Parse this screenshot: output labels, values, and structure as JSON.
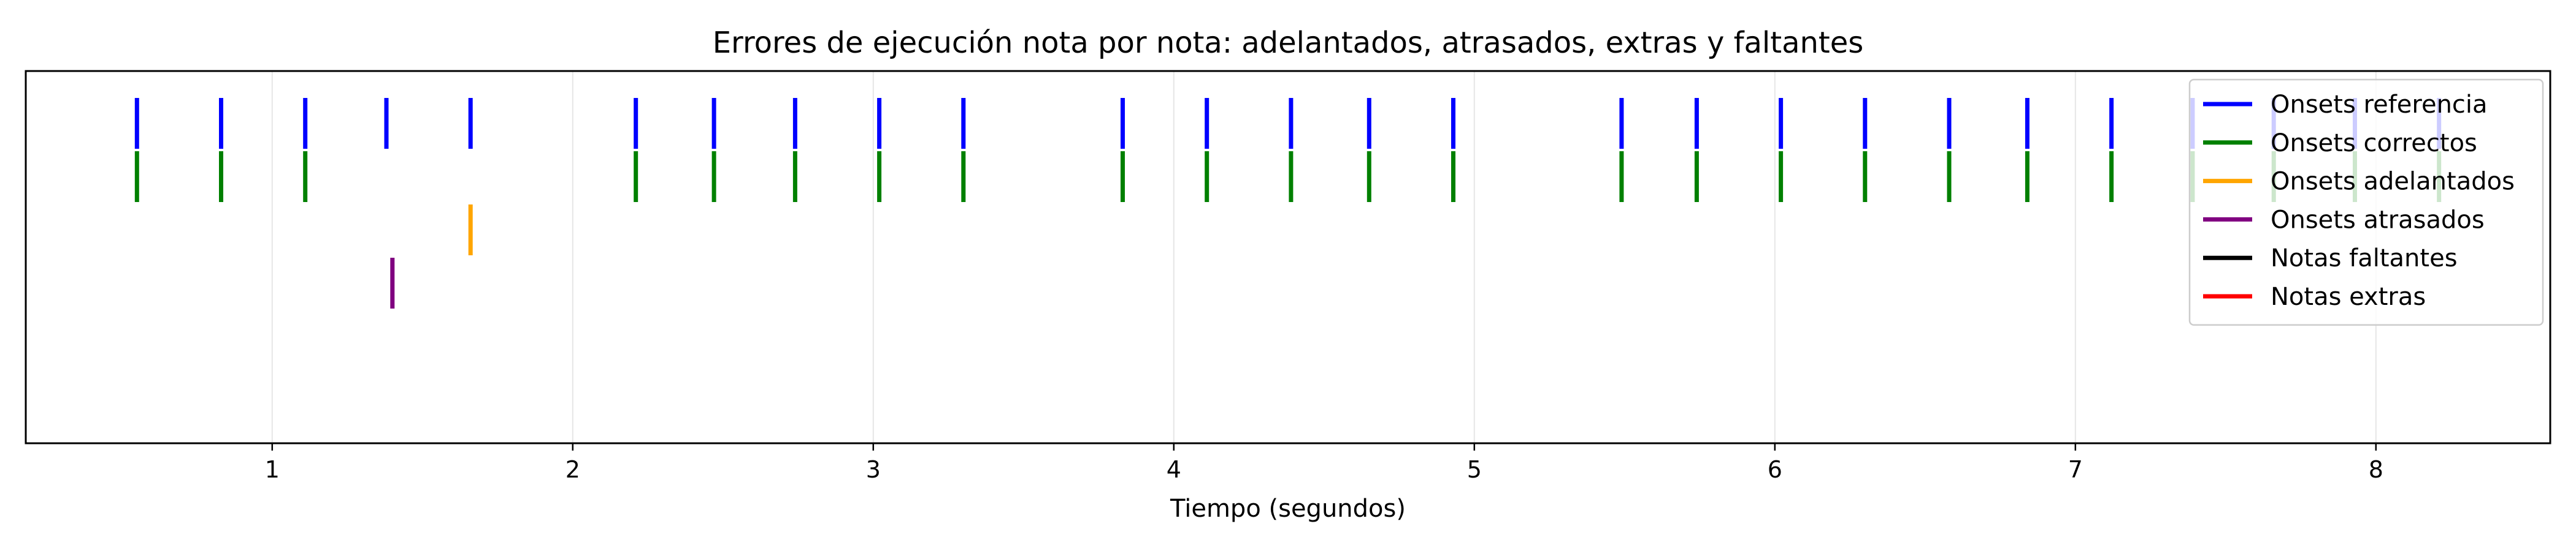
{
  "chart_data": {
    "type": "event-plot",
    "title": "Errores de ejecución nota por nota: adelantados, atrasados, extras y faltantes",
    "xlabel": "Tiempo (segundos)",
    "ylabel": "",
    "xlim": [
      0.18,
      8.58
    ],
    "xticks": [
      1,
      2,
      3,
      4,
      5,
      6,
      7,
      8
    ],
    "xtick_labels": [
      "1",
      "2",
      "3",
      "4",
      "5",
      "6",
      "7",
      "8"
    ],
    "grid": true,
    "legend_position": "top-right",
    "series": [
      {
        "name": "Onsets referencia",
        "color": "#0000ff",
        "row": 0,
        "x": [
          0.55,
          0.83,
          1.11,
          1.38,
          1.66,
          2.21,
          2.47,
          2.74,
          3.02,
          3.3,
          3.83,
          4.11,
          4.39,
          4.65,
          4.93,
          5.49,
          5.74,
          6.02,
          6.3,
          6.58,
          6.84,
          7.12,
          7.39,
          7.66,
          7.93,
          8.21
        ]
      },
      {
        "name": "Onsets correctos",
        "color": "#008000",
        "row": 1,
        "x": [
          0.55,
          0.83,
          1.11,
          2.21,
          2.47,
          2.74,
          3.02,
          3.3,
          3.83,
          4.11,
          4.39,
          4.65,
          4.93,
          5.49,
          5.74,
          6.02,
          6.3,
          6.58,
          6.84,
          7.12,
          7.39,
          7.66,
          7.93,
          8.21
        ]
      },
      {
        "name": "Onsets adelantados",
        "color": "#ffa500",
        "row": 2,
        "x": [
          1.66
        ]
      },
      {
        "name": "Onsets atrasados",
        "color": "#800080",
        "row": 3,
        "x": [
          1.4
        ]
      },
      {
        "name": "Notas faltantes",
        "color": "#000000",
        "row": 4,
        "x": []
      },
      {
        "name": "Notas extras",
        "color": "#ff0000",
        "row": 5,
        "x": []
      }
    ]
  }
}
